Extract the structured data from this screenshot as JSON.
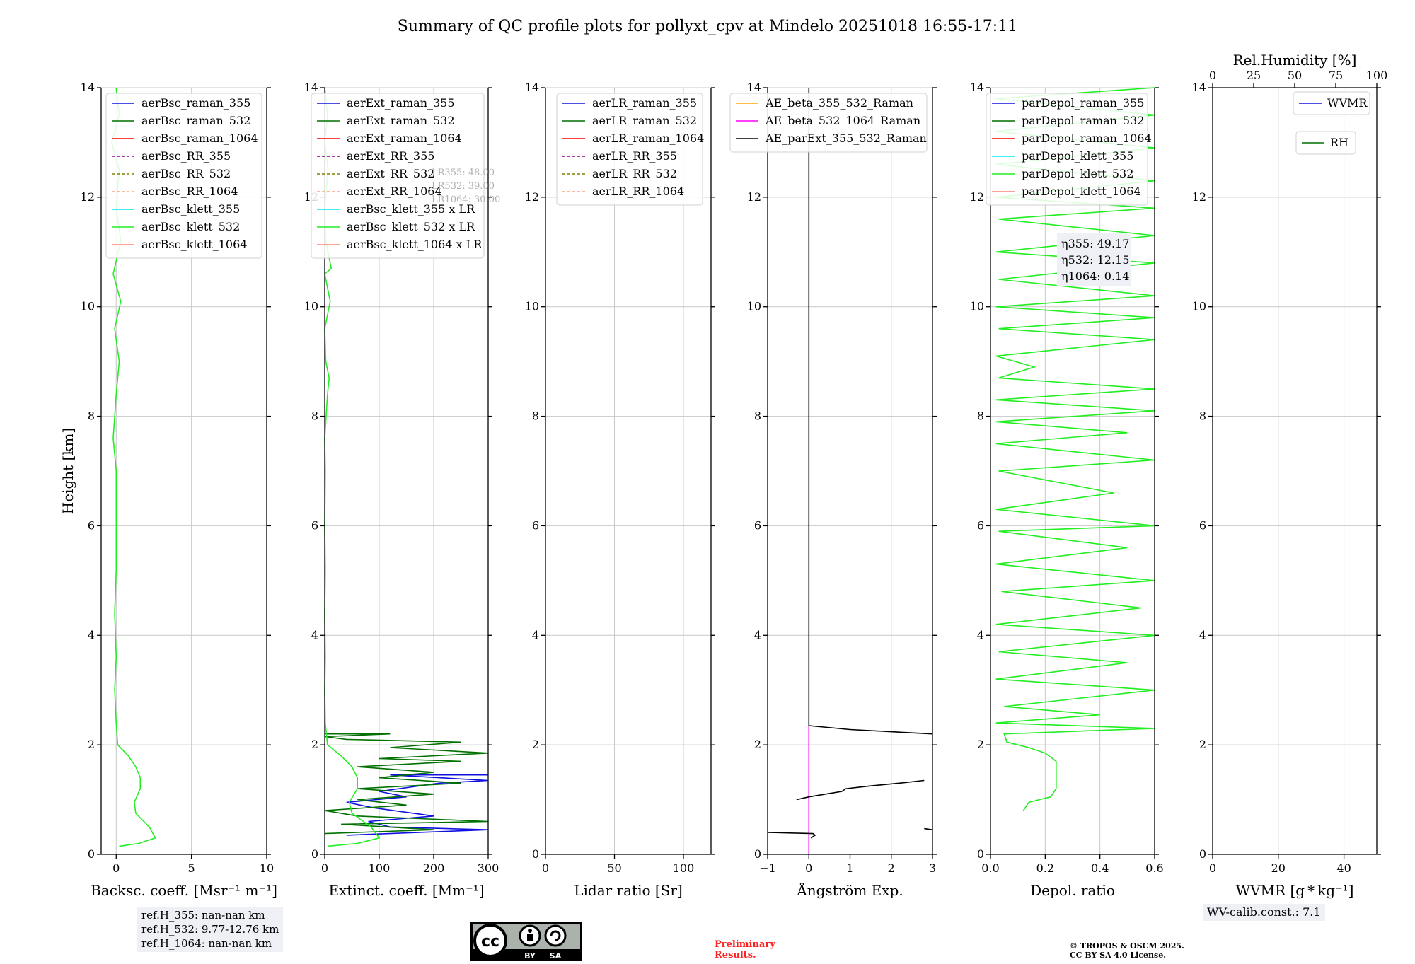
{
  "title": "Summary of QC profile plots for pollyxt_cpv at Mindelo 20251018 16:55-17:11",
  "colors": {
    "raman355": "#1010e0",
    "raman532": "#007000",
    "raman1064": "#ff0000",
    "rr355": "#800080",
    "rr532": "#808000",
    "rr1064": "#ffa07a",
    "klett355": "#00e5ee",
    "klett532": "#22ee22",
    "klett1064": "#fa8072",
    "ae1": "#ffa500",
    "ae2": "#ff00ff",
    "ae3": "#000000"
  },
  "chart_data": [
    {
      "type": "line",
      "name": "backscatter",
      "xlabel": "Backsc. coeff. [Msr⁻¹ m⁻¹]",
      "ylabel": "Height [km]",
      "xlim": [
        -1,
        10
      ],
      "ylim": [
        0,
        14
      ],
      "xticks": [
        0,
        5,
        10
      ],
      "yticks": [
        0,
        2,
        4,
        6,
        8,
        10,
        12,
        14
      ],
      "grid": true,
      "legend": [
        "aerBsc_raman_355",
        "aerBsc_raman_532",
        "aerBsc_raman_1064",
        "aerBsc_RR_355",
        "aerBsc_RR_532",
        "aerBsc_RR_1064",
        "aerBsc_klett_355",
        "aerBsc_klett_532",
        "aerBsc_klett_1064"
      ],
      "legend_colors": [
        "raman355",
        "raman532",
        "raman1064",
        "rr355",
        "rr532",
        "rr1064",
        "klett355",
        "klett532",
        "klett1064"
      ],
      "legend_dashed": [
        false,
        false,
        false,
        true,
        true,
        true,
        false,
        false,
        false
      ],
      "series": [
        {
          "name": "aerBsc_klett_532",
          "color": "klett532",
          "points": [
            [
              0.2,
              0.15
            ],
            [
              1.5,
              0.2
            ],
            [
              2.6,
              0.3
            ],
            [
              2.2,
              0.5
            ],
            [
              1.3,
              0.75
            ],
            [
              1.2,
              0.95
            ],
            [
              1.6,
              1.2
            ],
            [
              1.6,
              1.4
            ],
            [
              1.3,
              1.6
            ],
            [
              0.8,
              1.8
            ],
            [
              0.1,
              2.0
            ],
            [
              0.0,
              2.4
            ],
            [
              -0.1,
              3.0
            ],
            [
              0.0,
              3.6
            ],
            [
              -0.1,
              4.4
            ],
            [
              0.0,
              5.2
            ],
            [
              0.0,
              6.0
            ],
            [
              0.0,
              7.0
            ],
            [
              -0.2,
              7.6
            ],
            [
              0.0,
              8.4
            ],
            [
              0.2,
              9.0
            ],
            [
              -0.1,
              9.6
            ],
            [
              0.3,
              10.1
            ],
            [
              -0.2,
              10.6
            ],
            [
              0.3,
              11.2
            ],
            [
              0.0,
              11.8
            ],
            [
              0.2,
              12.5
            ],
            [
              -0.3,
              13.0
            ],
            [
              0.2,
              13.5
            ],
            [
              0.0,
              14.0
            ]
          ]
        }
      ]
    },
    {
      "type": "line",
      "name": "extinction",
      "xlabel": "Extinct. coeff. [Mm⁻¹]",
      "xlim": [
        0,
        300
      ],
      "ylim": [
        0,
        14
      ],
      "xticks": [
        0,
        100,
        200,
        300
      ],
      "yticks": [
        0,
        2,
        4,
        6,
        8,
        10,
        12,
        14
      ],
      "grid": true,
      "legend": [
        "aerExt_raman_355",
        "aerExt_raman_532",
        "aerExt_raman_1064",
        "aerExt_RR_355",
        "aerExt_RR_532",
        "aerExt_RR_1064",
        "aerBsc_klett_355 x LR",
        "aerBsc_klett_532 x LR",
        "aerBsc_klett_1064 x LR"
      ],
      "legend_colors": [
        "raman355",
        "raman532",
        "raman1064",
        "rr355",
        "rr532",
        "rr1064",
        "klett355",
        "klett532",
        "klett1064"
      ],
      "legend_dashed": [
        false,
        false,
        false,
        true,
        true,
        true,
        false,
        false,
        false
      ],
      "lr_labels": [
        "LR355: 48.00",
        "LR532: 39.00",
        "LR1064: 30.00"
      ],
      "series": [
        {
          "name": "aerExt_raman_355",
          "color": "raman355",
          "points": [
            [
              40,
              0.35
            ],
            [
              300,
              0.45
            ],
            [
              120,
              0.5
            ],
            [
              80,
              0.6
            ],
            [
              200,
              0.7
            ],
            [
              90,
              0.85
            ],
            [
              40,
              0.95
            ],
            [
              150,
              1.05
            ],
            [
              100,
              1.15
            ],
            [
              210,
              1.3
            ],
            [
              300,
              1.35
            ],
            [
              120,
              1.45
            ],
            [
              300,
              1.45
            ]
          ]
        },
        {
          "name": "aerExt_raman_532",
          "color": "raman532",
          "points": [
            [
              0,
              0.38
            ],
            [
              200,
              0.45
            ],
            [
              30,
              0.55
            ],
            [
              300,
              0.6
            ],
            [
              60,
              0.7
            ],
            [
              0,
              0.8
            ],
            [
              150,
              0.9
            ],
            [
              60,
              1.0
            ],
            [
              200,
              1.1
            ],
            [
              60,
              1.2
            ],
            [
              250,
              1.3
            ],
            [
              100,
              1.4
            ],
            [
              200,
              1.5
            ],
            [
              60,
              1.6
            ],
            [
              250,
              1.7
            ],
            [
              100,
              1.75
            ],
            [
              300,
              1.85
            ],
            [
              120,
              1.95
            ],
            [
              250,
              2.05
            ],
            [
              40,
              2.1
            ],
            [
              0,
              2.15
            ],
            [
              120,
              2.2
            ],
            [
              0,
              2.2
            ]
          ]
        },
        {
          "name": "aerBsc_klett_532 x LR",
          "color": "klett532",
          "points": [
            [
              5,
              0.15
            ],
            [
              60,
              0.2
            ],
            [
              100,
              0.3
            ],
            [
              85,
              0.5
            ],
            [
              50,
              0.75
            ],
            [
              45,
              0.95
            ],
            [
              60,
              1.2
            ],
            [
              60,
              1.4
            ],
            [
              50,
              1.6
            ],
            [
              30,
              1.8
            ],
            [
              5,
              2.0
            ],
            [
              1,
              2.4
            ],
            [
              0,
              3.0
            ],
            [
              1,
              3.6
            ],
            [
              0,
              4.4
            ],
            [
              1,
              5.2
            ],
            [
              0,
              6.0
            ],
            [
              1,
              7.0
            ],
            [
              0,
              7.6
            ],
            [
              5,
              8.4
            ],
            [
              8,
              8.7
            ],
            [
              2,
              9.0
            ],
            [
              0,
              9.6
            ],
            [
              10,
              10.1
            ],
            [
              0,
              10.6
            ],
            [
              12,
              10.7
            ],
            [
              2,
              11.2
            ],
            [
              0,
              11.8
            ],
            [
              6,
              12.5
            ],
            [
              0,
              13.0
            ],
            [
              5,
              13.5
            ],
            [
              0,
              14.0
            ]
          ]
        }
      ]
    },
    {
      "type": "line",
      "name": "lidar_ratio",
      "xlabel": "Lidar ratio [Sr]",
      "xlim": [
        0,
        120
      ],
      "ylim": [
        0,
        14
      ],
      "xticks": [
        0,
        50,
        100
      ],
      "yticks": [
        0,
        2,
        4,
        6,
        8,
        10,
        12,
        14
      ],
      "grid": true,
      "legend": [
        "aerLR_raman_355",
        "aerLR_raman_532",
        "aerLR_raman_1064",
        "aerLR_RR_355",
        "aerLR_RR_532",
        "aerLR_RR_1064"
      ],
      "legend_colors": [
        "raman355",
        "raman532",
        "raman1064",
        "rr355",
        "rr532",
        "rr1064"
      ],
      "legend_dashed": [
        false,
        false,
        false,
        true,
        true,
        true
      ],
      "series": []
    },
    {
      "type": "line",
      "name": "angstrom",
      "xlabel": "Ångström Exp.",
      "xlim": [
        -1,
        3
      ],
      "ylim": [
        0,
        14
      ],
      "xticks": [
        -1,
        0,
        1,
        2,
        3
      ],
      "yticks": [
        0,
        2,
        4,
        6,
        8,
        10,
        12,
        14
      ],
      "grid": true,
      "legend": [
        "AE_beta_355_532_Raman",
        "AE_beta_532_1064_Raman",
        "AE_parExt_355_532_Raman"
      ],
      "legend_colors": [
        "ae1",
        "ae2",
        "ae3"
      ],
      "legend_dashed": [
        false,
        false,
        false
      ],
      "series": [
        {
          "name": "AE_beta_532_1064_Raman",
          "color": "ae2",
          "points": [
            [
              0,
              0
            ],
            [
              0,
              2.35
            ]
          ]
        },
        {
          "name": "AE_parExt_355_532_Raman",
          "color": "ae3",
          "points": [
            [
              3,
              2.2
            ],
            [
              1,
              2.28
            ],
            [
              0,
              2.35
            ],
            [
              0,
              14
            ]
          ]
        },
        {
          "name": "AE_parExt_355_532_Raman",
          "color": "ae3",
          "points": [
            [
              -0.3,
              1.0
            ],
            [
              0.0,
              1.05
            ],
            [
              0.8,
              1.15
            ],
            [
              0.9,
              1.2
            ],
            [
              1.5,
              1.25
            ],
            [
              2.2,
              1.3
            ],
            [
              2.8,
              1.35
            ]
          ]
        },
        {
          "name": "AE_parExt_355_532_Raman",
          "color": "ae3",
          "points": [
            [
              -1,
              0.4
            ],
            [
              0.1,
              0.38
            ],
            [
              0.15,
              0.35
            ],
            [
              0.05,
              0.3
            ]
          ]
        },
        {
          "name": "AE_parExt_355_532_Raman",
          "color": "ae3",
          "points": [
            [
              2.8,
              0.47
            ],
            [
              3,
              0.45
            ]
          ]
        }
      ]
    },
    {
      "type": "line",
      "name": "depol",
      "xlabel": "Depol. ratio",
      "xlim": [
        0,
        0.6
      ],
      "ylim": [
        0,
        14
      ],
      "xticks": [
        0.0,
        0.2,
        0.4,
        0.6
      ],
      "yticks": [
        0,
        2,
        4,
        6,
        8,
        10,
        12,
        14
      ],
      "grid": true,
      "legend": [
        "parDepol_raman_355",
        "parDepol_raman_532",
        "parDepol_raman_1064",
        "parDepol_klett_355",
        "parDepol_klett_532",
        "parDepol_klett_1064"
      ],
      "legend_colors": [
        "raman355",
        "raman532",
        "raman1064",
        "klett355",
        "klett532",
        "klett1064"
      ],
      "legend_dashed": [
        false,
        false,
        false,
        false,
        false,
        false
      ],
      "eta_labels": [
        "η355: 49.17",
        "η532: 12.15",
        "η1064: 0.14"
      ],
      "series": [
        {
          "name": "parDepol_klett_532",
          "color": "klett532",
          "points": [
            [
              0.12,
              0.8
            ],
            [
              0.14,
              0.95
            ],
            [
              0.22,
              1.05
            ],
            [
              0.24,
              1.2
            ],
            [
              0.24,
              1.45
            ],
            [
              0.24,
              1.7
            ],
            [
              0.2,
              1.85
            ],
            [
              0.14,
              1.95
            ],
            [
              0.06,
              2.05
            ],
            [
              0.05,
              2.2
            ],
            [
              0.6,
              2.3
            ],
            [
              0.02,
              2.4
            ],
            [
              0.4,
              2.55
            ],
            [
              0.05,
              2.7
            ],
            [
              0.6,
              3.0
            ],
            [
              0.02,
              3.2
            ],
            [
              0.5,
              3.5
            ],
            [
              0.03,
              3.7
            ],
            [
              0.6,
              4.0
            ],
            [
              0.02,
              4.2
            ],
            [
              0.55,
              4.5
            ],
            [
              0.04,
              4.8
            ],
            [
              0.6,
              5.0
            ],
            [
              0.02,
              5.3
            ],
            [
              0.5,
              5.6
            ],
            [
              0.03,
              5.9
            ],
            [
              0.6,
              6.0
            ],
            [
              0.02,
              6.3
            ],
            [
              0.45,
              6.6
            ],
            [
              0.03,
              7.0
            ],
            [
              0.6,
              7.2
            ],
            [
              0.02,
              7.5
            ],
            [
              0.5,
              7.7
            ],
            [
              0.02,
              7.9
            ],
            [
              0.6,
              8.1
            ],
            [
              0.02,
              8.3
            ],
            [
              0.6,
              8.5
            ],
            [
              0.03,
              8.7
            ],
            [
              0.16,
              8.9
            ],
            [
              0.02,
              9.1
            ],
            [
              0.6,
              9.4
            ],
            [
              0.03,
              9.6
            ],
            [
              0.6,
              9.8
            ],
            [
              0.02,
              10.0
            ],
            [
              0.6,
              10.2
            ],
            [
              0.03,
              10.5
            ],
            [
              0.6,
              10.8
            ],
            [
              0.02,
              11.0
            ],
            [
              0.6,
              11.3
            ],
            [
              0.03,
              11.6
            ],
            [
              0.6,
              11.8
            ],
            [
              0.02,
              12.0
            ],
            [
              0.6,
              12.3
            ],
            [
              0.02,
              12.6
            ],
            [
              0.6,
              12.9
            ],
            [
              0.02,
              13.2
            ],
            [
              0.6,
              13.5
            ],
            [
              0.02,
              13.8
            ],
            [
              0.6,
              14.0
            ]
          ]
        }
      ]
    },
    {
      "type": "line",
      "name": "wvmr",
      "xlabel": "WVMR [g * kg⁻¹]",
      "top_xlabel": "Rel.Humidity [%]",
      "xlim": [
        0,
        50
      ],
      "ylim": [
        0,
        14
      ],
      "xticks": [
        0,
        20,
        40
      ],
      "top_xticks": [
        0,
        25,
        50,
        75,
        100
      ],
      "top_xlim": [
        0,
        100
      ],
      "yticks": [
        0,
        2,
        4,
        6,
        8,
        10,
        12,
        14
      ],
      "grid": true,
      "legend": [
        "WVMR",
        "RH"
      ],
      "legend_colors": [
        "raman355",
        "raman532"
      ],
      "legend_dashed": [
        false,
        false
      ],
      "series": []
    }
  ],
  "ref_heights": [
    "ref.H_355: nan-nan km",
    "ref.H_532: 9.77-12.76 km",
    "ref.H_1064: nan-nan km"
  ],
  "wv_calib": "WV-calib.const.: 7.1",
  "preliminary": [
    "Preliminary",
    "Results."
  ],
  "copyright": [
    "© TROPOS & OSCM 2025.",
    "CC BY SA 4.0 License."
  ],
  "cc_badge": {
    "cc": "cc",
    "by": "BY",
    "sa": "SA"
  }
}
